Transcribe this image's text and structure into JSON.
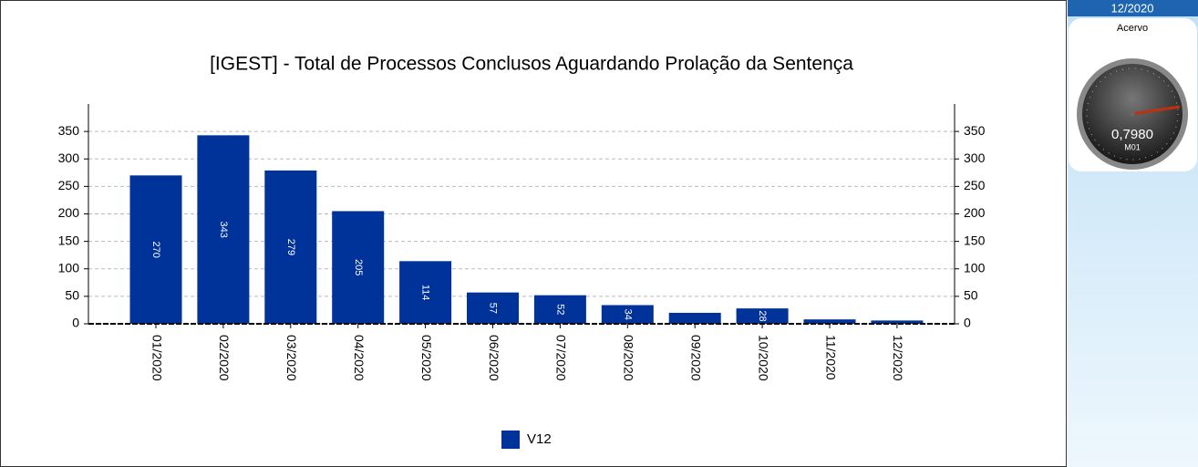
{
  "chart_data": {
    "type": "bar",
    "title": "[IGEST]  - Total de Processos Conclusos Aguardando Prolação da Sentença",
    "categories": [
      "01/2020",
      "02/2020",
      "03/2020",
      "04/2020",
      "05/2020",
      "06/2020",
      "07/2020",
      "08/2020",
      "09/2020",
      "10/2020",
      "11/2020",
      "12/2020"
    ],
    "series": [
      {
        "name": "V12",
        "color": "#003399",
        "values": [
          270,
          343,
          279,
          205,
          114,
          57,
          52,
          34,
          20,
          28,
          8,
          6
        ],
        "value_labels": [
          "270",
          "343",
          "279",
          "205",
          "114",
          "57",
          "52",
          "34",
          null,
          "28",
          null,
          null
        ]
      }
    ],
    "ylim": [
      0,
      400
    ],
    "yticks": [
      0,
      50,
      100,
      150,
      200,
      250,
      300,
      350
    ],
    "y2lim": [
      0,
      400
    ],
    "y2ticks": [
      0,
      50,
      100,
      150,
      200,
      250,
      300,
      350
    ],
    "grid": true,
    "legend": "bottom"
  },
  "panel": {
    "period": "12/2020",
    "gauge": {
      "title": "Acervo",
      "value_label": "0,7980",
      "unit": "M01"
    }
  }
}
